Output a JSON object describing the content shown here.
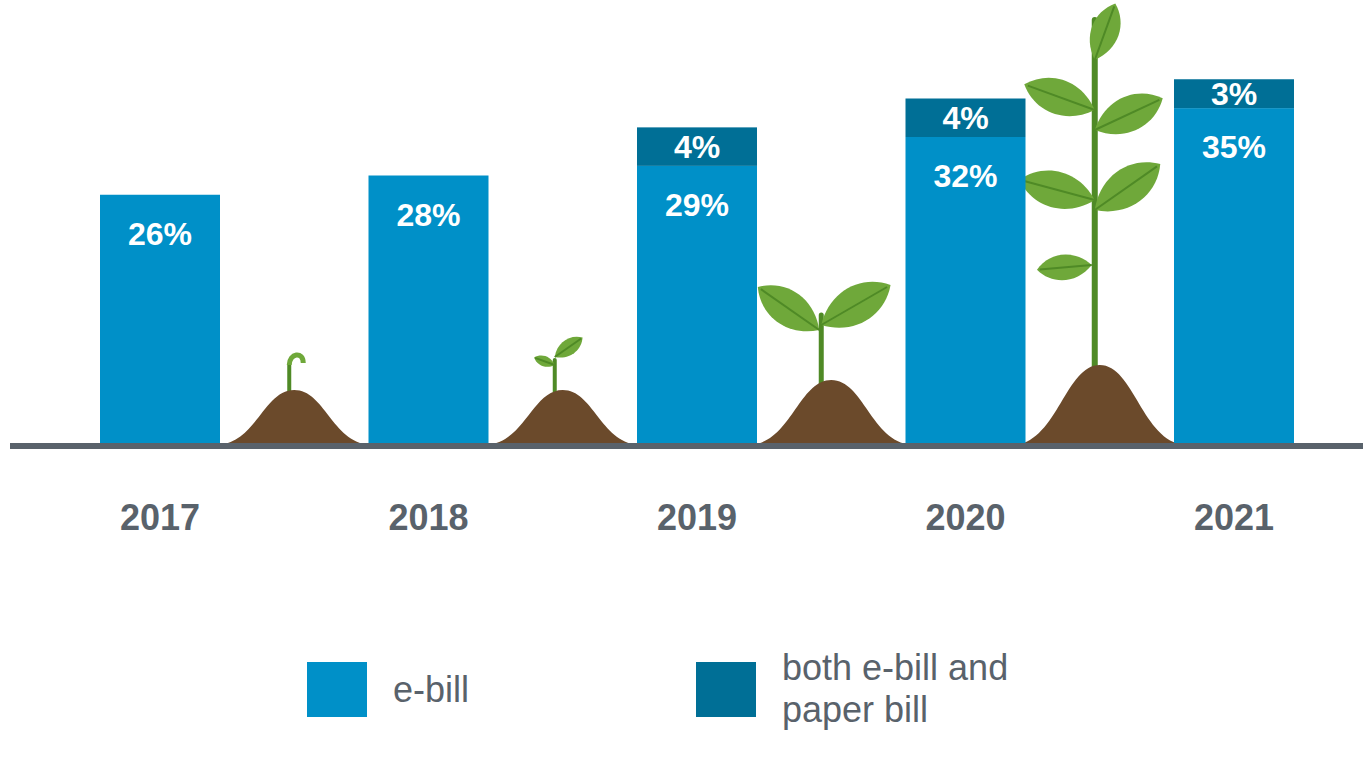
{
  "chart_data": {
    "type": "bar",
    "stacked": true,
    "data_labels": true,
    "tick_labels": "x",
    "legend": "bottom",
    "categories": [
      "2017",
      "2018",
      "2019",
      "2020",
      "2021"
    ],
    "ylim": [
      0,
      40
    ],
    "series": [
      {
        "name": "e-bill",
        "color": "#0090c8",
        "values": [
          26,
          28,
          29,
          32,
          35
        ],
        "value_labels": [
          "26%",
          "28%",
          "29%",
          "32%",
          "35%"
        ]
      },
      {
        "name": "both e-bill and paper bill",
        "color": "#006f96",
        "values": [
          null,
          null,
          4,
          4,
          3
        ],
        "value_labels": [
          null,
          null,
          "4%",
          "4%",
          "3%"
        ]
      }
    ]
  }
}
